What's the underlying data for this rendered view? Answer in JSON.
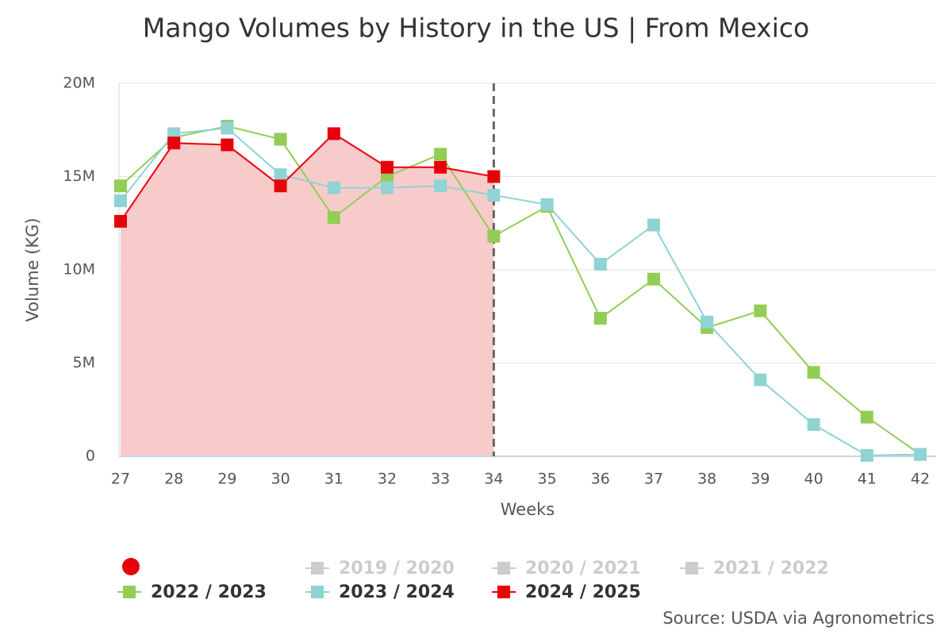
{
  "chart_data": {
    "type": "line",
    "title": "Mango Volumes by History in the US | From Mexico",
    "x_label": "Weeks",
    "y_label": "Volume (KG)",
    "source": "Source: USDA via Agronometrics",
    "x": [
      27,
      28,
      29,
      30,
      31,
      32,
      33,
      34,
      35,
      36,
      37,
      38,
      39,
      40,
      41,
      42
    ],
    "xlim": [
      27,
      42
    ],
    "ylim": [
      0,
      20000000
    ],
    "yticks": [
      0,
      {
        "value": 5000000,
        "label": "5M"
      },
      {
        "value": 10000000,
        "label": "10M"
      },
      {
        "value": 15000000,
        "label": "15M"
      },
      {
        "value": 20000000,
        "label": "20M"
      }
    ],
    "grid": true,
    "current_week": 34,
    "legend_hidden": [
      "2019 / 2020",
      "2020 / 2021",
      "2021 / 2022"
    ],
    "series": [
      {
        "name": "2022 / 2023",
        "color": "#92cd55",
        "values": [
          14500000,
          17100000,
          17700000,
          17000000,
          12800000,
          15000000,
          16200000,
          11800000,
          13400000,
          7400000,
          9500000,
          6900000,
          7800000,
          4500000,
          2100000,
          100000
        ]
      },
      {
        "name": "2023 / 2024",
        "color": "#8fd3d3",
        "values": [
          13700000,
          17300000,
          17600000,
          15100000,
          14400000,
          14400000,
          14500000,
          14000000,
          13500000,
          10300000,
          12400000,
          7200000,
          4100000,
          1700000,
          50000,
          100000
        ]
      },
      {
        "name": "2024 / 2025",
        "color": "#e8000b",
        "fill": "#f8cbcb",
        "values": [
          12600000,
          16800000,
          16700000,
          14500000,
          17300000,
          15500000,
          15500000,
          15000000,
          null,
          null,
          null,
          null,
          null,
          null,
          null,
          null
        ]
      }
    ]
  }
}
